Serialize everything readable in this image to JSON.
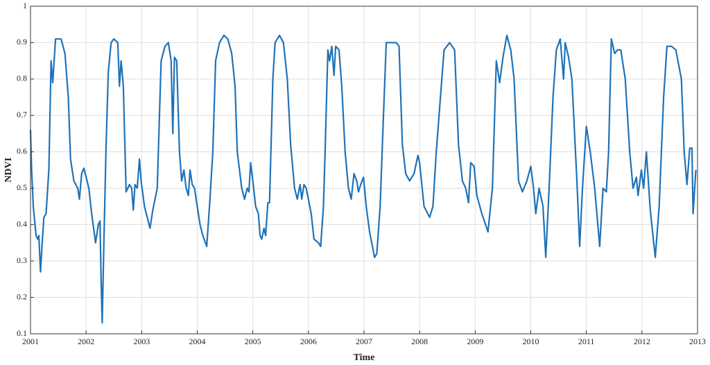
{
  "chart_data": {
    "type": "line",
    "x_label": "Time",
    "y_label": "NDVI",
    "color": "#1f72b8",
    "grid": true,
    "xlim": [
      2001,
      2013
    ],
    "xticks": [
      2001,
      2002,
      2003,
      2004,
      2005,
      2006,
      2007,
      2008,
      2009,
      2010,
      2011,
      2012,
      2013
    ],
    "ylim": [
      0.1,
      1
    ],
    "yticks": [
      0.1,
      0.2,
      0.3,
      0.4,
      0.5,
      0.6,
      0.7,
      0.8,
      0.9,
      1
    ],
    "x": [
      2001,
      2001.02,
      2001.05,
      2001.1,
      2001.13,
      2001.15,
      2001.18,
      2001.21,
      2001.24,
      2001.28,
      2001.33,
      2001.37,
      2001.4,
      2001.45,
      2001.55,
      2001.62,
      2001.68,
      2001.72,
      2001.78,
      2001.85,
      2001.88,
      2001.92,
      2001.96,
      2002.05,
      2002.1,
      2002.17,
      2002.22,
      2002.25,
      2002.27,
      2002.29,
      2002.32,
      2002.36,
      2002.4,
      2002.45,
      2002.5,
      2002.57,
      2002.6,
      2002.63,
      2002.67,
      2002.72,
      2002.78,
      2002.82,
      2002.85,
      2002.88,
      2002.92,
      2002.96,
      2002.99,
      2003.05,
      2003.1,
      2003.15,
      2003.2,
      2003.28,
      2003.35,
      2003.42,
      2003.48,
      2003.53,
      2003.56,
      2003.59,
      2003.63,
      2003.68,
      2003.72,
      2003.76,
      2003.8,
      2003.84,
      2003.87,
      2003.91,
      2003.95,
      2004,
      2004.05,
      2004.1,
      2004.17,
      2004.22,
      2004.28,
      2004.33,
      2004.4,
      2004.48,
      2004.55,
      2004.62,
      2004.68,
      2004.72,
      2004.8,
      2004.85,
      2004.9,
      2004.93,
      2004.96,
      2005,
      2005.05,
      2005.1,
      2005.13,
      2005.16,
      2005.2,
      2005.23,
      2005.27,
      2005.3,
      2005.36,
      2005.4,
      2005.48,
      2005.55,
      2005.62,
      2005.68,
      2005.75,
      2005.8,
      2005.85,
      2005.88,
      2005.92,
      2005.96,
      2006.05,
      2006.1,
      2006.18,
      2006.22,
      2006.27,
      2006.3,
      2006.35,
      2006.38,
      2006.42,
      2006.46,
      2006.49,
      2006.55,
      2006.6,
      2006.66,
      2006.72,
      2006.77,
      2006.82,
      2006.87,
      2006.9,
      2006.94,
      2006.99,
      2007.04,
      2007.1,
      2007.19,
      2007.23,
      2007.29,
      2007.35,
      2007.4,
      2007.5,
      2007.58,
      2007.63,
      2007.69,
      2007.75,
      2007.82,
      2007.9,
      2007.97,
      2008,
      2008.08,
      2008.18,
      2008.24,
      2008.3,
      2008.44,
      2008.54,
      2008.63,
      2008.7,
      2008.77,
      2008.83,
      2008.88,
      2008.92,
      2008.98,
      2009.03,
      2009.12,
      2009.23,
      2009.31,
      2009.38,
      2009.44,
      2009.5,
      2009.57,
      2009.64,
      2009.7,
      2009.78,
      2009.85,
      2009.93,
      2010,
      2010.05,
      2010.09,
      2010.15,
      2010.22,
      2010.27,
      2010.33,
      2010.4,
      2010.46,
      2010.53,
      2010.59,
      2010.62,
      2010.68,
      2010.74,
      2010.83,
      2010.88,
      2010.93,
      2011,
      2011.07,
      2011.15,
      2011.24,
      2011.3,
      2011.36,
      2011.4,
      2011.45,
      2011.51,
      2011.56,
      2011.62,
      2011.7,
      2011.78,
      2011.84,
      2011.9,
      2011.93,
      2011.99,
      2012.03,
      2012.08,
      2012.15,
      2012.24,
      2012.31,
      2012.39,
      2012.45,
      2012.53,
      2012.61,
      2012.71,
      2012.76,
      2012.81,
      2012.86,
      2012.9,
      2012.92,
      2012.97
    ],
    "values": [
      0.66,
      0.55,
      0.45,
      0.37,
      0.36,
      0.37,
      0.27,
      0.35,
      0.42,
      0.43,
      0.55,
      0.85,
      0.79,
      0.91,
      0.91,
      0.87,
      0.75,
      0.58,
      0.52,
      0.5,
      0.47,
      0.54,
      0.555,
      0.5,
      0.43,
      0.35,
      0.4,
      0.41,
      0.25,
      0.13,
      0.35,
      0.62,
      0.82,
      0.9,
      0.91,
      0.9,
      0.78,
      0.85,
      0.78,
      0.49,
      0.51,
      0.5,
      0.44,
      0.51,
      0.5,
      0.58,
      0.52,
      0.45,
      0.42,
      0.39,
      0.44,
      0.5,
      0.85,
      0.89,
      0.9,
      0.85,
      0.65,
      0.86,
      0.85,
      0.6,
      0.52,
      0.55,
      0.5,
      0.48,
      0.55,
      0.51,
      0.5,
      0.45,
      0.4,
      0.37,
      0.34,
      0.45,
      0.6,
      0.85,
      0.9,
      0.92,
      0.91,
      0.87,
      0.78,
      0.6,
      0.5,
      0.47,
      0.5,
      0.49,
      0.57,
      0.52,
      0.45,
      0.43,
      0.37,
      0.36,
      0.39,
      0.37,
      0.46,
      0.46,
      0.8,
      0.9,
      0.92,
      0.9,
      0.8,
      0.62,
      0.5,
      0.47,
      0.51,
      0.47,
      0.51,
      0.5,
      0.43,
      0.36,
      0.35,
      0.34,
      0.45,
      0.6,
      0.88,
      0.85,
      0.89,
      0.81,
      0.89,
      0.88,
      0.78,
      0.6,
      0.5,
      0.47,
      0.54,
      0.52,
      0.49,
      0.51,
      0.53,
      0.45,
      0.38,
      0.31,
      0.32,
      0.45,
      0.7,
      0.9,
      0.9,
      0.9,
      0.89,
      0.62,
      0.54,
      0.52,
      0.54,
      0.59,
      0.57,
      0.45,
      0.42,
      0.45,
      0.6,
      0.88,
      0.9,
      0.88,
      0.62,
      0.52,
      0.5,
      0.46,
      0.57,
      0.56,
      0.48,
      0.43,
      0.38,
      0.5,
      0.85,
      0.79,
      0.86,
      0.92,
      0.88,
      0.8,
      0.52,
      0.49,
      0.52,
      0.56,
      0.5,
      0.43,
      0.5,
      0.45,
      0.31,
      0.5,
      0.75,
      0.88,
      0.91,
      0.8,
      0.9,
      0.86,
      0.8,
      0.52,
      0.34,
      0.5,
      0.67,
      0.6,
      0.5,
      0.34,
      0.5,
      0.49,
      0.6,
      0.91,
      0.87,
      0.88,
      0.88,
      0.8,
      0.6,
      0.5,
      0.53,
      0.48,
      0.55,
      0.5,
      0.6,
      0.44,
      0.31,
      0.45,
      0.75,
      0.89,
      0.89,
      0.88,
      0.8,
      0.6,
      0.51,
      0.61,
      0.61,
      0.43,
      0.55
    ]
  }
}
